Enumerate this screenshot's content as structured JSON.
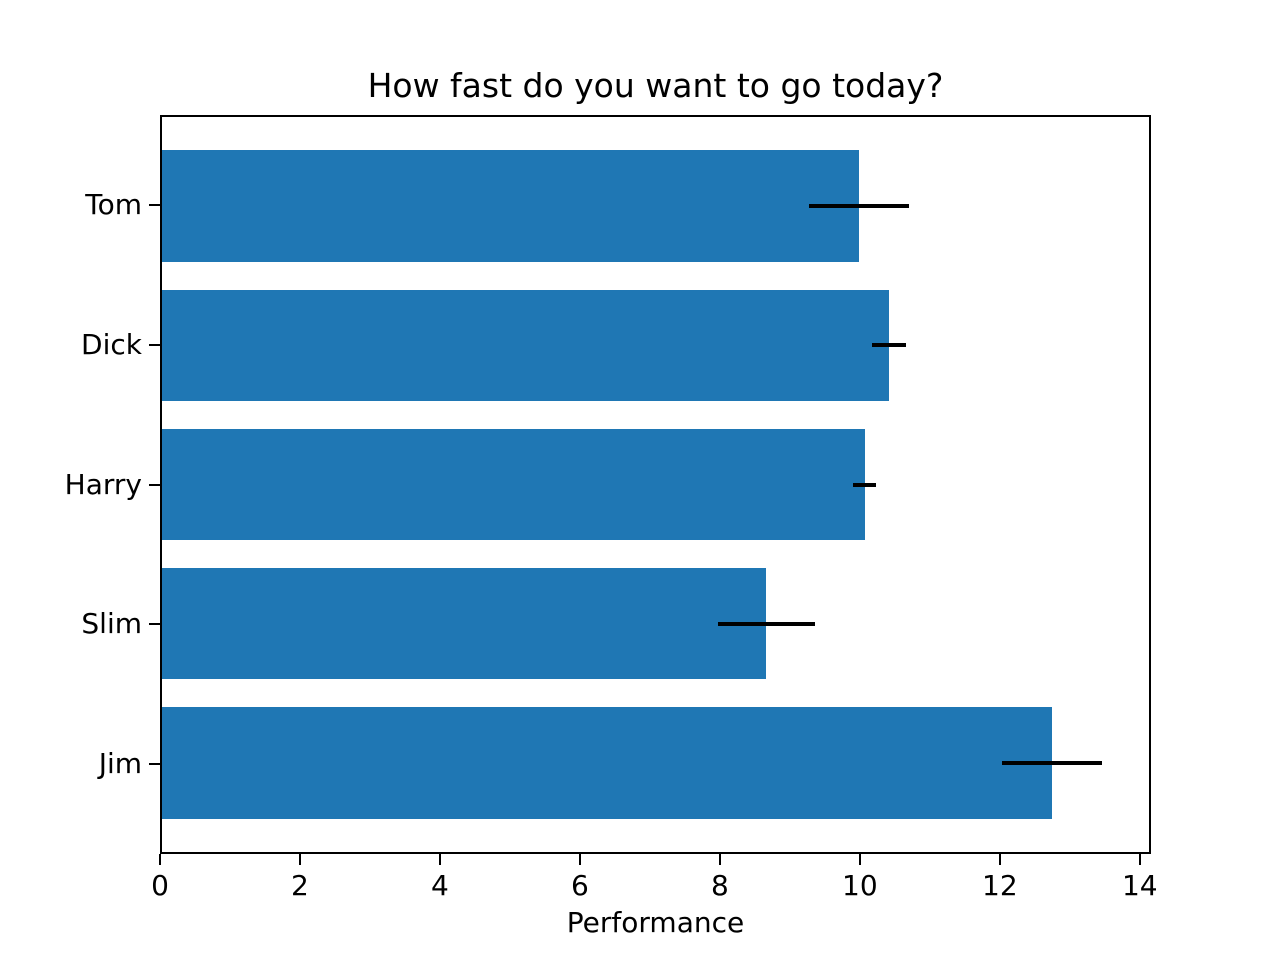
{
  "figure": {
    "background": "#ffffff",
    "text_color": "#000000",
    "spine_color": "#000000"
  },
  "chart_data": {
    "type": "bar",
    "orientation": "horizontal",
    "title": "How fast do you want to go today?",
    "xlabel": "Performance",
    "ylabel": "",
    "categories": [
      "Tom",
      "Dick",
      "Harry",
      "Slim",
      "Jim"
    ],
    "values": [
      10.0,
      10.43,
      10.08,
      8.67,
      12.77
    ],
    "errors": [
      0.72,
      0.25,
      0.16,
      0.7,
      0.72
    ],
    "x_ticks": [
      0,
      2,
      4,
      6,
      8,
      10,
      12,
      14
    ],
    "xlim": [
      0,
      14.16
    ],
    "grid": false,
    "legend_position": "none",
    "bar_color": "#1f77b4",
    "error_color": "#000000",
    "layout": {
      "bar_height_frac": 0.8,
      "y_pad": 0.64
    }
  }
}
